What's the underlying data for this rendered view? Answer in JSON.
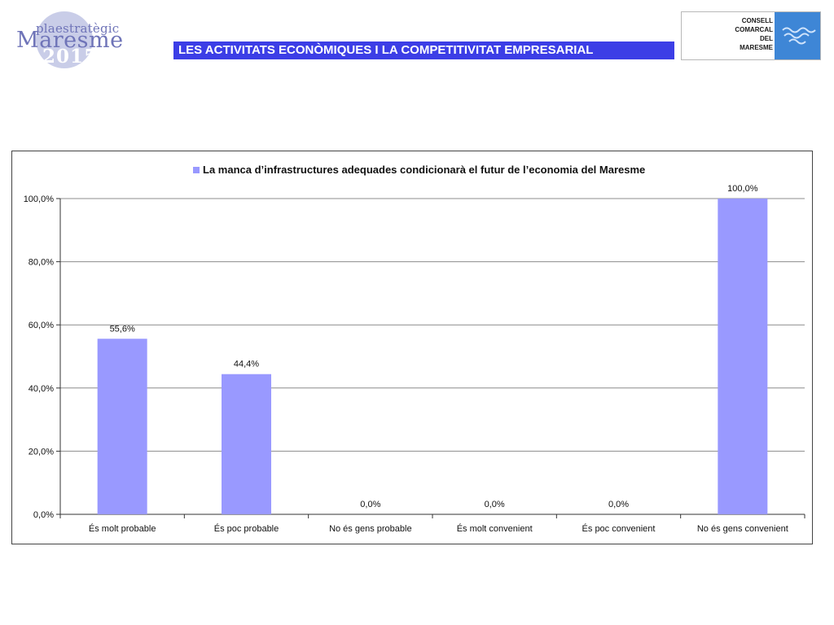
{
  "header": {
    "logo": {
      "line1": "plaestratègic",
      "line2": "Maresme",
      "line3": "2015"
    },
    "banner_title": "LES ACTIVITATS ECONÒMIQUES I LA COMPETITIVITAT EMPRESARIAL",
    "consell": {
      "lines": [
        "CONSELL",
        "COMARCAL",
        "DEL",
        "MARESME"
      ],
      "emblem": "waves-emblem-icon"
    }
  },
  "colors": {
    "banner": "#3c3ee6",
    "bar": "#9999ff",
    "grid": "#8c8c8c",
    "axis": "#333333",
    "logo": "#6f74b8"
  },
  "chart_data": {
    "type": "bar",
    "legend_label": "La manca d’infrastructures adequades condicionarà el futur de l’economia del Maresme",
    "legend_position": "top",
    "categories": [
      "És molt probable",
      "És poc probable",
      "No és gens probable",
      "És molt convenient",
      "És poc convenient",
      "No és gens convenient"
    ],
    "series": [
      {
        "name": "La manca d’infrastructures adequades condicionarà el futur de l’economia del Maresme",
        "values": [
          55.6,
          44.4,
          0.0,
          0.0,
          0.0,
          100.0
        ],
        "labels": [
          "55,6%",
          "44,4%",
          "0,0%",
          "0,0%",
          "0,0%",
          "100,0%"
        ]
      }
    ],
    "yticks": [
      0,
      20,
      40,
      60,
      80,
      100
    ],
    "ytick_labels": [
      "0,0%",
      "20,0%",
      "40,0%",
      "60,0%",
      "80,0%",
      "100,0%"
    ],
    "ylim": [
      0,
      100
    ],
    "grid": true
  }
}
